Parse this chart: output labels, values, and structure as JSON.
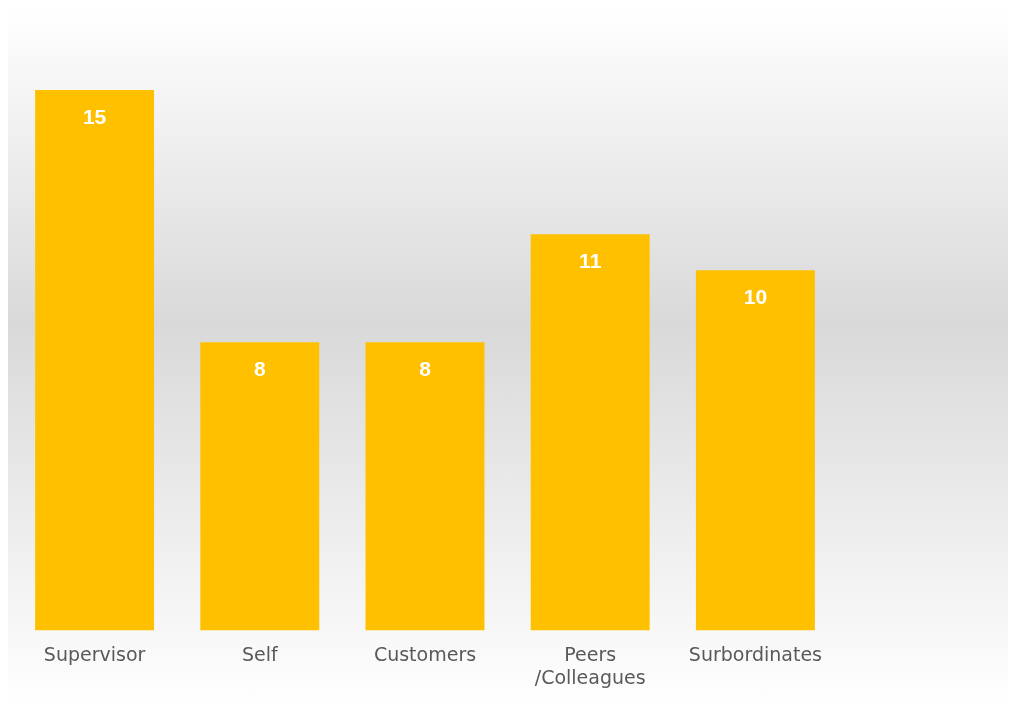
{
  "chart_data": {
    "type": "bar",
    "categories": [
      "Supervisor",
      "Self",
      "Customers",
      "Peers /Colleagues",
      "Surbordinates"
    ],
    "values": [
      15,
      8,
      8,
      11,
      10
    ],
    "color": "#ffc000",
    "data_labels": true,
    "tick_labels": "x",
    "grid": false,
    "legend": false
  }
}
